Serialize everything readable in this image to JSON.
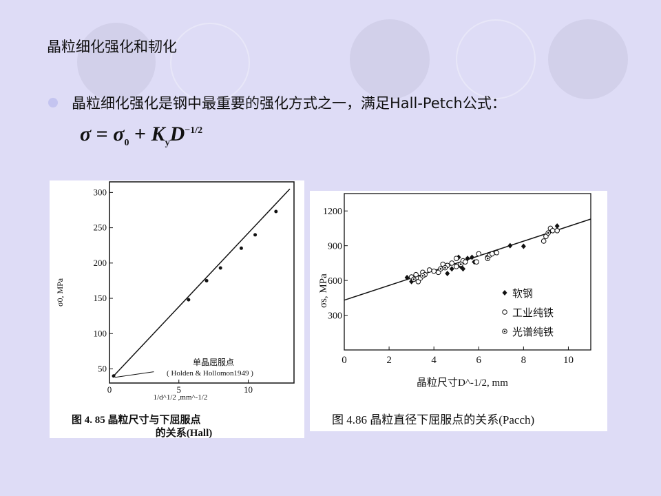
{
  "slide": {
    "title": "晶粒细化强化和韧化",
    "bullet": "晶粒细化强化是钢中最重要的强化方式之一，满足Hall-Petch公式：",
    "formula": {
      "lhs": "σ",
      "eq": "=",
      "sigma0": "σ",
      "sub0": "0",
      "plus": "+",
      "K": "K",
      "suby": "y",
      "D": "D",
      "exp": "−1/2"
    }
  },
  "colors": {
    "background": "#dedcf6",
    "circle": "#d2d0ea",
    "bullet": "#c4c4f0"
  },
  "chart_data": [
    {
      "type": "scatter",
      "ylabel": "σ0, MPa",
      "xlabel": "1/d^1/2 ,mm^-1/2",
      "xticks": [
        "0",
        "5",
        "10"
      ],
      "yticks": [
        "50",
        "100",
        "150",
        "200",
        "250",
        "300"
      ],
      "xlim": [
        0,
        13.3
      ],
      "ylim": [
        30,
        315
      ],
      "annotation": [
        "单晶屈服点",
        "( Holden & Hollomon1949 )"
      ],
      "caption": [
        "图 4. 85    晶粒尺寸与下屈服点",
        "的关系(Hall)"
      ],
      "points": [
        [
          0.3,
          40
        ],
        [
          5.7,
          148
        ],
        [
          7,
          175
        ],
        [
          8,
          193
        ],
        [
          9.5,
          221
        ],
        [
          10.5,
          240
        ],
        [
          12,
          273
        ]
      ],
      "fit_line": [
        [
          0.3,
          40
        ],
        [
          13,
          305
        ]
      ]
    },
    {
      "type": "scatter",
      "ylabel": "σs, MPa",
      "xlabel": "晶粒尺寸D^-1/2, mm",
      "xticks": [
        "0",
        "2",
        "4",
        "6",
        "8",
        "10"
      ],
      "yticks": [
        "300",
        "600",
        "900",
        "1200"
      ],
      "xlim": [
        0,
        11
      ],
      "ylim": [
        0,
        1350
      ],
      "legend_position": "bottom-right",
      "caption": "图 4.86   晶粒直径下屈服点的关系(Pacch)",
      "fit_line": [
        [
          0,
          430
        ],
        [
          11,
          1130
        ]
      ],
      "series": [
        {
          "name": "软钢",
          "marker": "filled-diamond",
          "points": [
            [
              2.8,
              625
            ],
            [
              3.0,
              590
            ],
            [
              4.6,
              660
            ],
            [
              4.8,
              700
            ],
            [
              5.1,
              800
            ],
            [
              5.2,
              720
            ],
            [
              5.3,
              700
            ],
            [
              5.5,
              790
            ],
            [
              5.7,
              800
            ],
            [
              5.8,
              760
            ],
            [
              7.4,
              900
            ],
            [
              8.0,
              895
            ],
            [
              9.5,
              1070
            ]
          ]
        },
        {
          "name": "工业纯铁",
          "marker": "open-circle",
          "points": [
            [
              3.0,
              630
            ],
            [
              3.2,
              650
            ],
            [
              3.3,
              590
            ],
            [
              3.4,
              620
            ],
            [
              3.5,
              670
            ],
            [
              3.6,
              650
            ],
            [
              3.8,
              690
            ],
            [
              4.0,
              680
            ],
            [
              4.2,
              670
            ],
            [
              4.4,
              740
            ],
            [
              4.6,
              730
            ],
            [
              4.8,
              750
            ],
            [
              5.0,
              790
            ],
            [
              5.0,
              720
            ],
            [
              5.3,
              770
            ],
            [
              5.4,
              760
            ],
            [
              6.0,
              830
            ],
            [
              5.9,
              760
            ],
            [
              6.4,
              800
            ],
            [
              6.5,
              820
            ],
            [
              6.6,
              830
            ],
            [
              6.8,
              840
            ],
            [
              8.9,
              940
            ],
            [
              9.0,
              980
            ],
            [
              9.2,
              1050
            ],
            [
              9.3,
              1030
            ],
            [
              9.5,
              1030
            ]
          ]
        },
        {
          "name": "光谱纯铁",
          "marker": "dotted-circle",
          "points": [
            [
              3.1,
              610
            ],
            [
              3.5,
              640
            ],
            [
              4.3,
              700
            ],
            [
              4.5,
              710
            ],
            [
              5.2,
              740
            ],
            [
              6.4,
              790
            ],
            [
              9.1,
              1010
            ]
          ]
        }
      ]
    }
  ]
}
